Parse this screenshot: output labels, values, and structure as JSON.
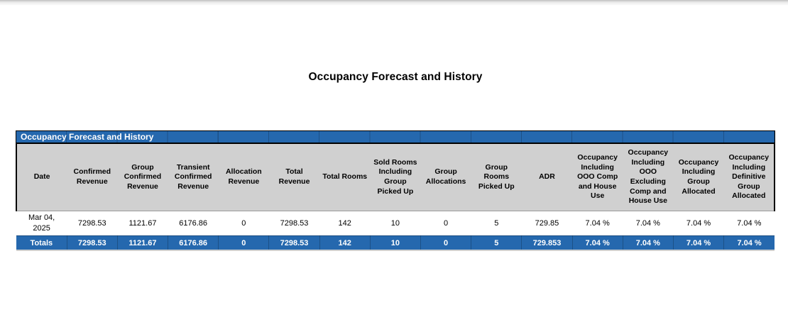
{
  "page": {
    "title": "Occupancy Forecast and History"
  },
  "table": {
    "title": "Occupancy Forecast and History",
    "columns": [
      "Date",
      "Confirmed Revenue",
      "Group Confirmed Revenue",
      "Transient Confirmed Revenue",
      "Allocation Revenue",
      "Total Revenue",
      "Total Rooms",
      "Sold Rooms Including Group Picked Up",
      "Group Allocations",
      "Group Rooms Picked Up",
      "ADR",
      "Occupancy Including OOO Comp and House Use",
      "Occupancy Including OOO Excluding Comp and House Use",
      "Occupancy Including Group Allocated",
      "Occupancy Including Definitive Group Allocated"
    ],
    "rows": [
      {
        "date": "Mar 04, 2025",
        "values": [
          "7298.53",
          "1121.67",
          "6176.86",
          "0",
          "7298.53",
          "142",
          "10",
          "0",
          "5",
          "729.85",
          "7.04 %",
          "7.04 %",
          "7.04 %",
          "7.04 %"
        ]
      }
    ],
    "totals": {
      "label": "Totals",
      "values": [
        "7298.53",
        "1121.67",
        "6176.86",
        "0",
        "7298.53",
        "142",
        "10",
        "0",
        "5",
        "729.853",
        "7.04 %",
        "7.04 %",
        "7.04 %",
        "7.04 %"
      ]
    }
  },
  "colors": {
    "accent_blue": "#2568AE",
    "header_gray": "#D0D0D0"
  }
}
